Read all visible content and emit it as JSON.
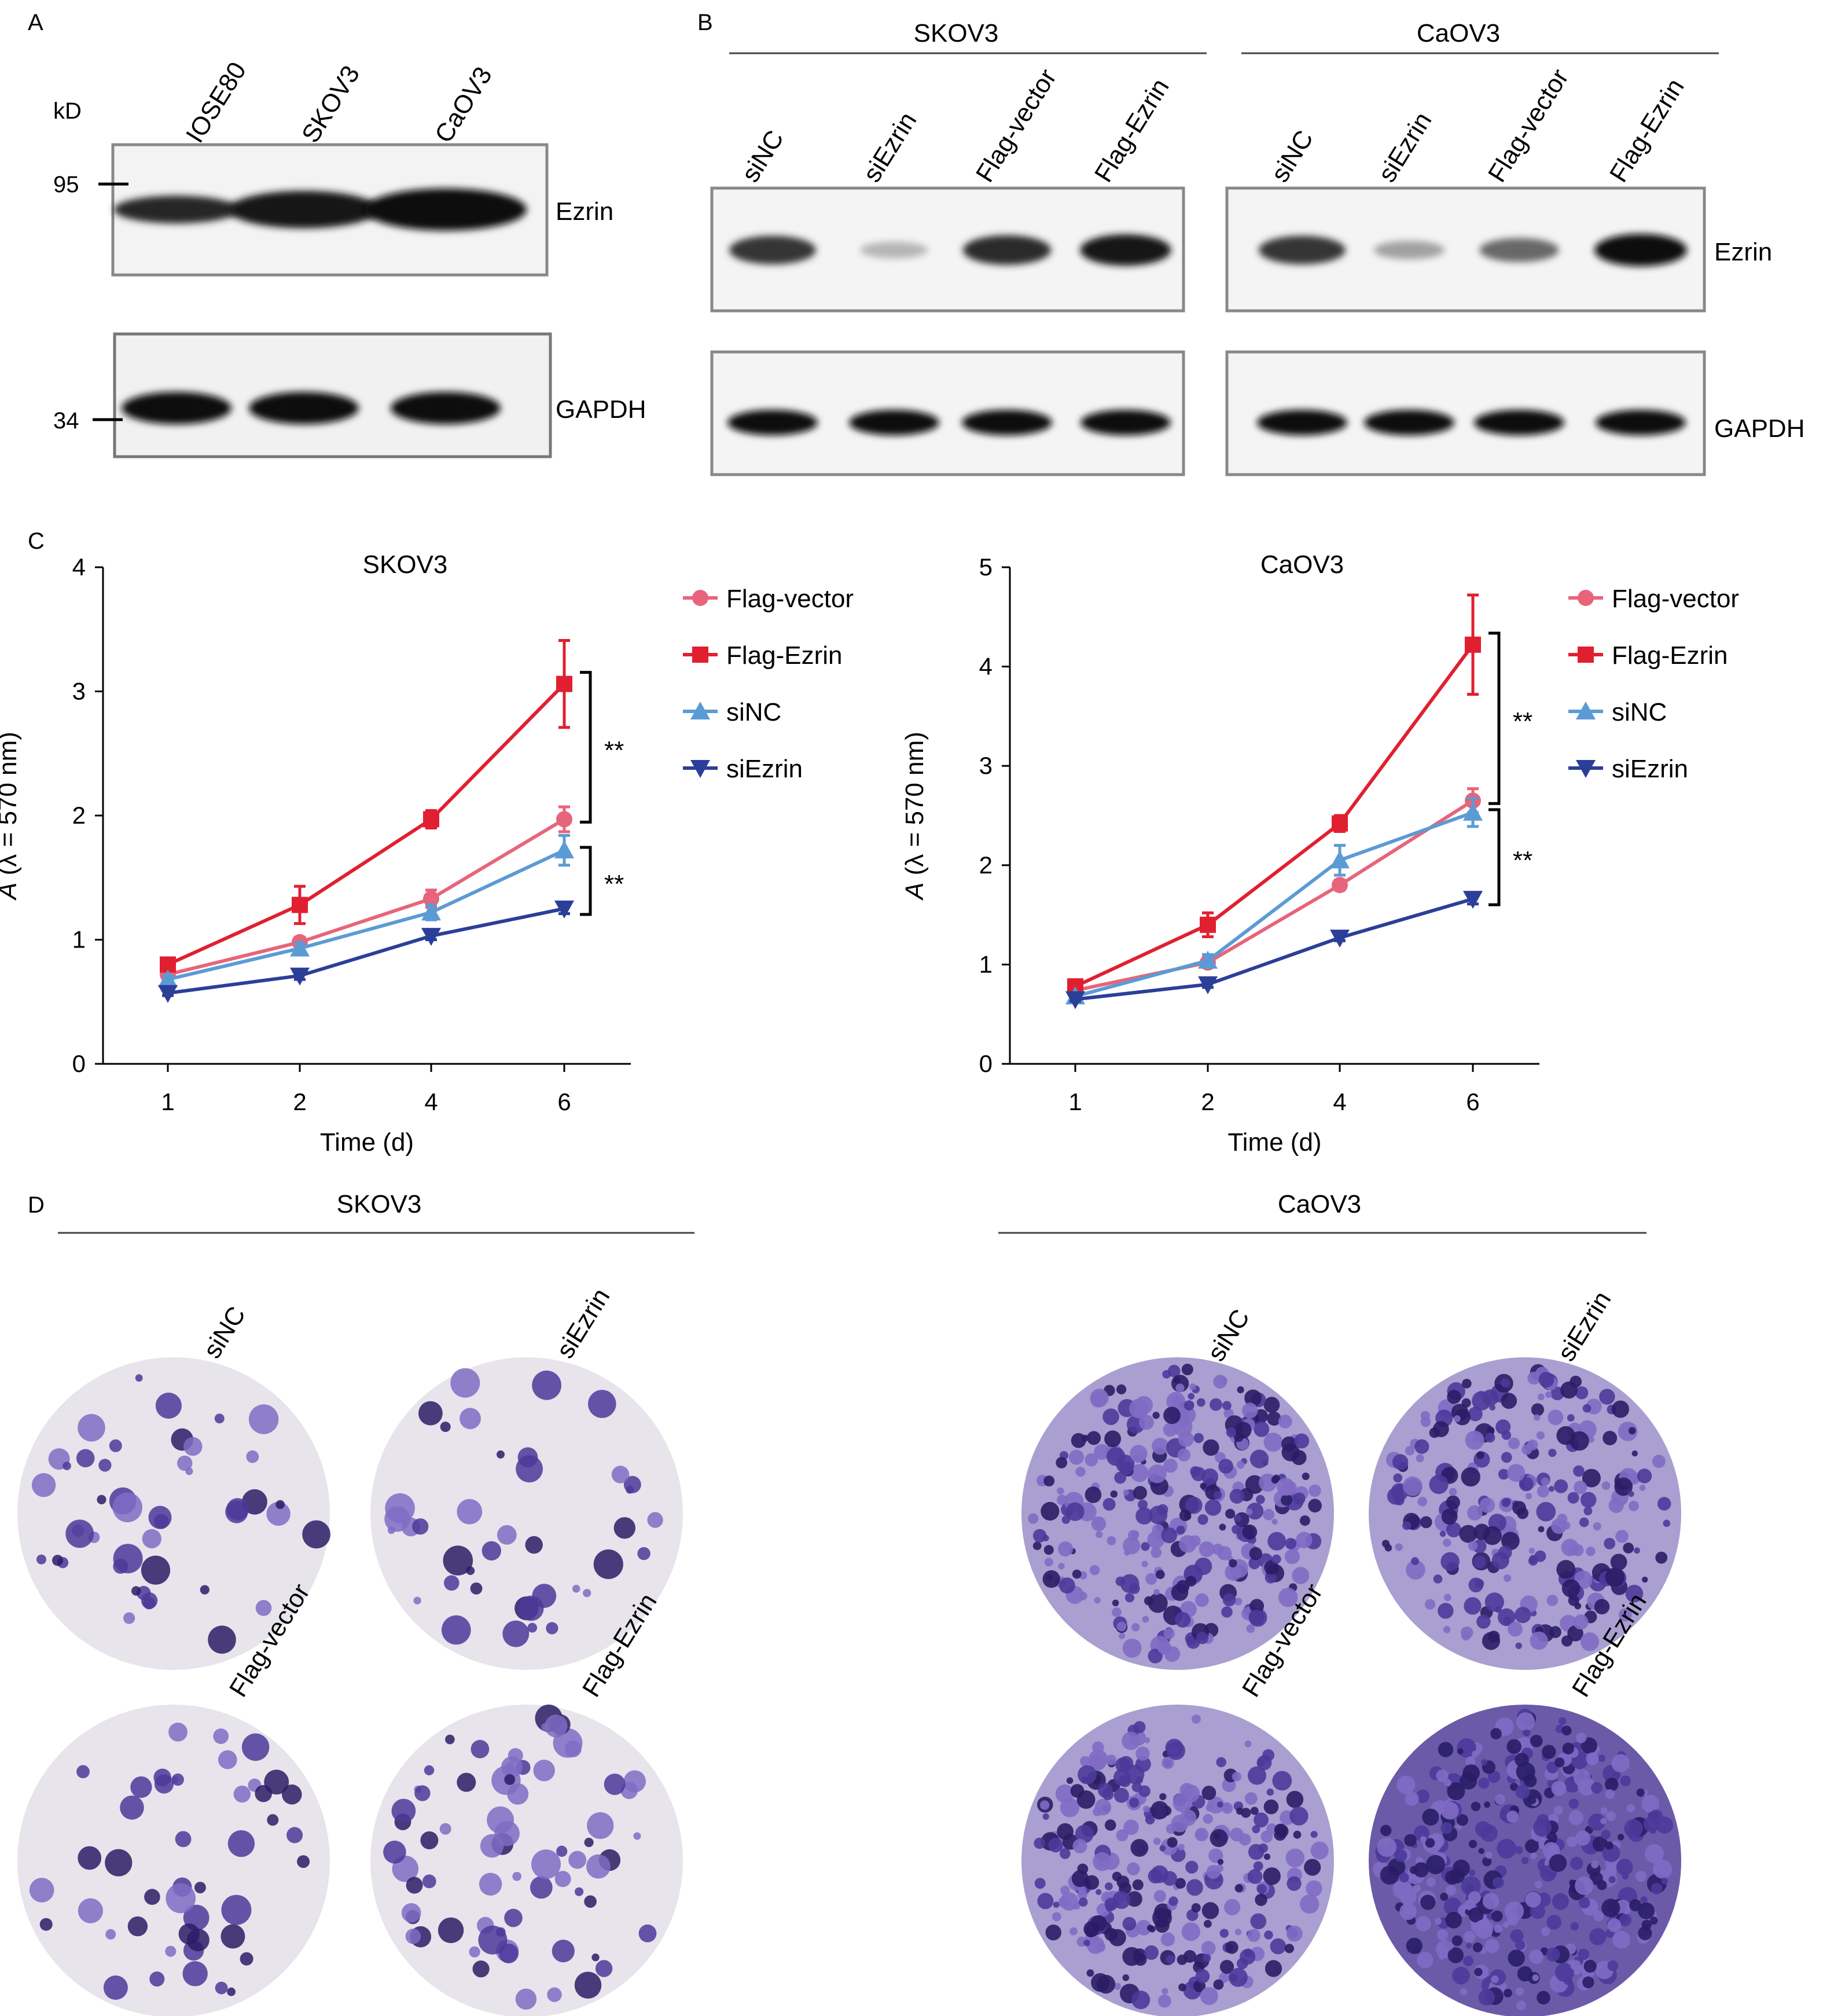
{
  "panel_labels": {
    "a": "A",
    "b": "B",
    "c": "C",
    "d": "D"
  },
  "panel_a": {
    "kd_label": "kD",
    "lanes": [
      "IOSE80",
      "SKOV3",
      "CaOV3"
    ],
    "markers": [
      "95",
      "34"
    ],
    "blots": [
      "Ezrin",
      "GAPDH"
    ],
    "band_intensity": {
      "Ezrin": [
        0.55,
        0.85,
        1.0
      ],
      "GAPDH": [
        0.95,
        0.95,
        0.95
      ]
    }
  },
  "panel_b": {
    "groups": [
      {
        "cell": "SKOV3",
        "lanes": [
          "siNC",
          "siEzrin",
          "Flag-vector",
          "Flag-Ezrin"
        ],
        "band_intensity": {
          "Ezrin": [
            0.8,
            0.15,
            0.85,
            0.95
          ],
          "GAPDH": [
            0.9,
            0.9,
            0.9,
            0.9
          ]
        }
      },
      {
        "cell": "CaOV3",
        "lanes": [
          "siNC",
          "siEzrin",
          "Flag-vector",
          "Flag-Ezrin"
        ],
        "band_intensity": {
          "Ezrin": [
            0.8,
            0.25,
            0.55,
            1.0
          ],
          "GAPDH": [
            0.95,
            0.95,
            0.95,
            0.95
          ]
        }
      }
    ],
    "blots": [
      "Ezrin",
      "GAPDH"
    ]
  },
  "chart_data": [
    {
      "type": "line",
      "title": "SKOV3",
      "xlabel": "Time (d)",
      "ylabel_italic": "A",
      "ylabel_rest": " (λ = 570 nm)",
      "categories": [
        "1",
        "2",
        "4",
        "6"
      ],
      "ylim": [
        0,
        4
      ],
      "yticks": [
        "0",
        "1",
        "2",
        "3",
        "4"
      ],
      "series": [
        {
          "name": "Flag-vector",
          "color": "#e8647a",
          "marker": "circle",
          "values": [
            0.72,
            0.98,
            1.33,
            1.97
          ],
          "errors": [
            0.03,
            0.04,
            0.07,
            0.1
          ]
        },
        {
          "name": "Flag-Ezrin",
          "color": "#e02030",
          "marker": "square",
          "values": [
            0.8,
            1.28,
            1.97,
            3.06
          ],
          "errors": [
            0.04,
            0.15,
            0.07,
            0.35
          ]
        },
        {
          "name": "siNC",
          "color": "#5b9bd5",
          "marker": "triangle-up",
          "values": [
            0.68,
            0.93,
            1.22,
            1.72
          ],
          "errors": [
            0.03,
            0.04,
            0.06,
            0.12
          ]
        },
        {
          "name": "siEzrin",
          "color": "#2b3f99",
          "marker": "triangle-down",
          "values": [
            0.57,
            0.71,
            1.03,
            1.25
          ],
          "errors": [
            0.02,
            0.03,
            0.03,
            0.04
          ]
        }
      ],
      "significance": [
        "**",
        "**"
      ]
    },
    {
      "type": "line",
      "title": "CaOV3",
      "xlabel": "Time (d)",
      "ylabel_italic": "A",
      "ylabel_rest": " (λ = 570 nm)",
      "categories": [
        "1",
        "2",
        "4",
        "6"
      ],
      "ylim": [
        0,
        5
      ],
      "yticks": [
        "0",
        "1",
        "2",
        "3",
        "4",
        "5"
      ],
      "series": [
        {
          "name": "Flag-vector",
          "color": "#e8647a",
          "marker": "circle",
          "values": [
            0.74,
            1.02,
            1.8,
            2.65
          ],
          "errors": [
            0.03,
            0.05,
            0.05,
            0.12
          ]
        },
        {
          "name": "Flag-Ezrin",
          "color": "#e02030",
          "marker": "square",
          "values": [
            0.78,
            1.4,
            2.42,
            4.22
          ],
          "errors": [
            0.04,
            0.12,
            0.08,
            0.5
          ]
        },
        {
          "name": "siNC",
          "color": "#5b9bd5",
          "marker": "triangle-up",
          "values": [
            0.68,
            1.04,
            2.05,
            2.53
          ],
          "errors": [
            0.03,
            0.06,
            0.15,
            0.14
          ]
        },
        {
          "name": "siEzrin",
          "color": "#2b3f99",
          "marker": "triangle-down",
          "values": [
            0.65,
            0.8,
            1.27,
            1.66
          ],
          "errors": [
            0.02,
            0.03,
            0.03,
            0.05
          ]
        }
      ],
      "significance": [
        "**",
        "**"
      ]
    }
  ],
  "panel_d": {
    "groups": [
      {
        "cell": "SKOV3",
        "plates": [
          {
            "label": "siNC",
            "density": 0.35
          },
          {
            "label": "siEzrin",
            "density": 0.25
          },
          {
            "label": "Flag-vector",
            "density": 0.35
          },
          {
            "label": "Flag-Ezrin",
            "density": 0.75
          }
        ]
      },
      {
        "cell": "CaOV3",
        "plates": [
          {
            "label": "siNC",
            "density": 0.75
          },
          {
            "label": "siEzrin",
            "density": 0.55
          },
          {
            "label": "Flag-vector",
            "density": 0.7
          },
          {
            "label": "Flag-Ezrin",
            "density": 0.95
          }
        ]
      }
    ]
  }
}
